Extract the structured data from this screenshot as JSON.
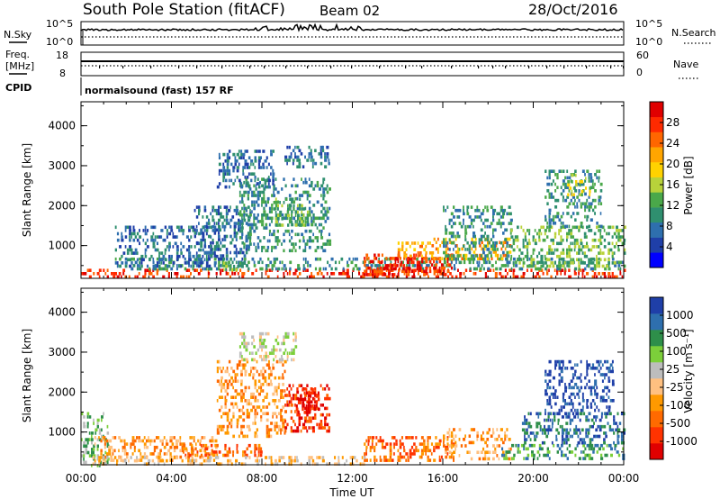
{
  "header": {
    "title": "South Pole Station (fitACF)",
    "beam": "Beam 02",
    "date": "28/Oct/2016"
  },
  "status_panels": {
    "nsky_label": "N.Sky",
    "nsearch_label": "N.Search",
    "nsky_ticks": [
      "10^5",
      "10^0"
    ],
    "nsky_right_ticks": [
      "10^5",
      "10^0"
    ],
    "freq_label_1": "Freq.",
    "freq_label_2": "[MHz]",
    "freq_ticks": [
      "18",
      "8"
    ],
    "nave_label": "Nave",
    "nave_ticks": [
      "60",
      "0"
    ],
    "cpid_label": "CPID",
    "cpid_text": "normalsound (fast) 157 RF"
  },
  "chart_data": [
    {
      "type": "heatmap",
      "panel": "power",
      "ylabel": "Slant Range [km]",
      "xlabel": "",
      "ylim": [
        180,
        4600
      ],
      "yticks": [
        "4000",
        "3000",
        "2000",
        "1000"
      ],
      "colorbar": {
        "label": "Power [dB]",
        "ticks": [
          "28",
          "24",
          "20",
          "16",
          "12",
          "8",
          "4"
        ],
        "colors": [
          "#0000ff",
          "#1f3fa8",
          "#2e6fae",
          "#2f8f6f",
          "#4aa84a",
          "#b8d23a",
          "#ffd200",
          "#ffa500",
          "#ff6600",
          "#ff2a00",
          "#e00000"
        ]
      },
      "regions": [
        {
          "x0": 0.0,
          "x1": 24.0,
          "y0": 180,
          "y1": 420,
          "level": 9
        },
        {
          "x0": 1.5,
          "x1": 24.0,
          "y0": 400,
          "y1": 700,
          "level": 3
        },
        {
          "x0": 12.5,
          "x1": 16.5,
          "y0": 300,
          "y1": 800,
          "level": 9
        },
        {
          "x0": 13.0,
          "x1": 15.0,
          "y0": 400,
          "y1": 700,
          "level": 10
        },
        {
          "x0": 15.5,
          "x1": 19.0,
          "y0": 700,
          "y1": 1200,
          "level": 7
        },
        {
          "x0": 14.0,
          "x1": 15.5,
          "y0": 700,
          "y1": 1100,
          "level": 7
        },
        {
          "x0": 6.2,
          "x1": 7.2,
          "y0": 400,
          "y1": 600,
          "level": 4
        },
        {
          "x0": 1.5,
          "x1": 6.0,
          "y0": 500,
          "y1": 1500,
          "level": 2
        },
        {
          "x0": 5.0,
          "x1": 7.5,
          "y0": 700,
          "y1": 2000,
          "level": 2
        },
        {
          "x0": 7.0,
          "x1": 11.0,
          "y0": 900,
          "y1": 2700,
          "level": 3
        },
        {
          "x0": 8.5,
          "x1": 10.0,
          "y0": 1500,
          "y1": 2200,
          "level": 4
        },
        {
          "x0": 6.0,
          "x1": 8.5,
          "y0": 2500,
          "y1": 3400,
          "level": 2
        },
        {
          "x0": 9.0,
          "x1": 11.0,
          "y0": 3000,
          "y1": 3500,
          "level": 2
        },
        {
          "x0": 16.0,
          "x1": 19.0,
          "y0": 600,
          "y1": 2000,
          "level": 3
        },
        {
          "x0": 19.0,
          "x1": 24.0,
          "y0": 500,
          "y1": 1500,
          "level": 4
        },
        {
          "x0": 20.5,
          "x1": 23.0,
          "y0": 1500,
          "y1": 2900,
          "level": 3
        },
        {
          "x0": 21.5,
          "x1": 22.5,
          "y0": 2300,
          "y1": 2800,
          "level": 5
        }
      ]
    },
    {
      "type": "heatmap",
      "panel": "velocity",
      "ylabel": "Slant Range [km]",
      "xlabel": "Time UT",
      "xlim": [
        0,
        24
      ],
      "xticks": [
        "00:00",
        "04:00",
        "08:00",
        "12:00",
        "16:00",
        "20:00",
        "00:00"
      ],
      "ylim": [
        180,
        4600
      ],
      "yticks": [
        "4000",
        "3000",
        "2000",
        "1000"
      ],
      "colorbar": {
        "label": "Velocity [m s⁻¹]",
        "ticks": [
          "1000",
          "500",
          "100",
          "25",
          "-25",
          "-100",
          "-500",
          "-1000"
        ],
        "colors": [
          "#e00000",
          "#ff3300",
          "#ff6a00",
          "#ff9900",
          "#ffc080",
          "#bdbdbd",
          "#7ccf3a",
          "#2e8f4a",
          "#2e6fae",
          "#1f3fa8"
        ]
      },
      "regions": [
        {
          "x0": 0.0,
          "x1": 1.2,
          "y0": 200,
          "y1": 1500,
          "level": 6
        },
        {
          "x0": 0.5,
          "x1": 6.0,
          "y0": 300,
          "y1": 900,
          "level": 3
        },
        {
          "x0": 4.5,
          "x1": 8.0,
          "y0": 400,
          "y1": 700,
          "level": 2
        },
        {
          "x0": 6.0,
          "x1": 9.0,
          "y0": 900,
          "y1": 2800,
          "level": 3
        },
        {
          "x0": 9.0,
          "x1": 11.0,
          "y0": 1000,
          "y1": 2200,
          "level": 1
        },
        {
          "x0": 9.5,
          "x1": 10.5,
          "y0": 1500,
          "y1": 2100,
          "level": 0
        },
        {
          "x0": 7.0,
          "x1": 9.5,
          "y0": 2800,
          "y1": 3500,
          "level": 5
        },
        {
          "x0": 12.5,
          "x1": 16.5,
          "y0": 300,
          "y1": 900,
          "level": 2
        },
        {
          "x0": 16.0,
          "x1": 19.0,
          "y0": 300,
          "y1": 1100,
          "level": 3
        },
        {
          "x0": 18.5,
          "x1": 24.0,
          "y0": 300,
          "y1": 700,
          "level": 7
        },
        {
          "x0": 19.5,
          "x1": 24.0,
          "y0": 700,
          "y1": 1500,
          "level": 8
        },
        {
          "x0": 20.5,
          "x1": 23.5,
          "y0": 1500,
          "y1": 2800,
          "level": 9
        },
        {
          "x0": 0.5,
          "x1": 12.5,
          "y0": 200,
          "y1": 400,
          "level": 4
        }
      ]
    }
  ]
}
